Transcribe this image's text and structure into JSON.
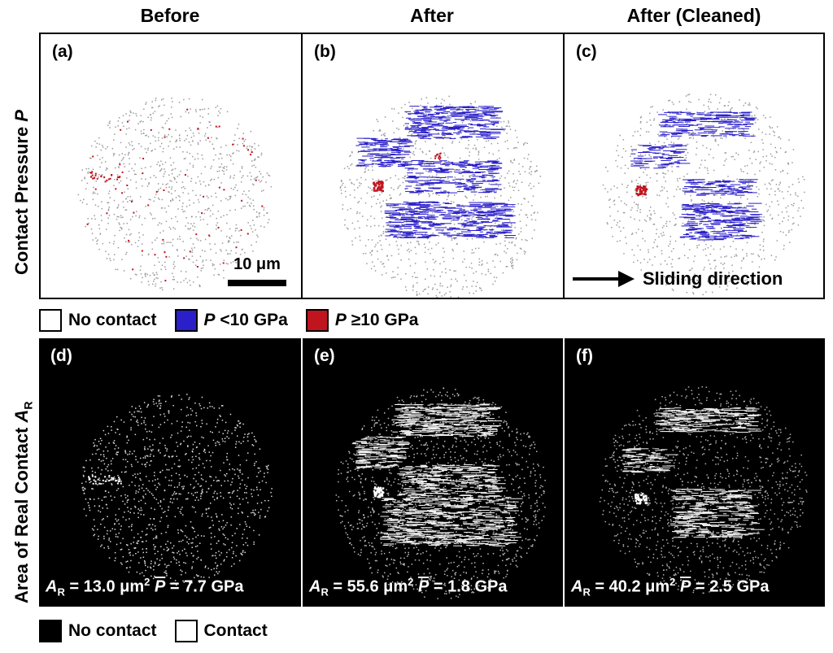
{
  "column_titles": [
    "Before",
    "After",
    "After (Cleaned)"
  ],
  "row_labels": {
    "top_prefix": "Contact Pressure ",
    "top_symbol": "P",
    "bottom_prefix": "Area of Real Contact ",
    "bottom_symbol": "A",
    "bottom_subscript": "R"
  },
  "panels_top": [
    {
      "label": "(a)"
    },
    {
      "label": "(b)"
    },
    {
      "label": "(c)"
    }
  ],
  "panels_bottom": [
    {
      "label": "(d)",
      "ar_value": "13.0",
      "p_value": "7.7"
    },
    {
      "label": "(e)",
      "ar_value": "55.6",
      "p_value": "1.8"
    },
    {
      "label": "(f)",
      "ar_value": "40.2",
      "p_value": "2.5"
    }
  ],
  "stat_text": {
    "ar_symbol": "A",
    "ar_sub": "R",
    "ar_unit": "μm",
    "ar_unit_sup": "2",
    "p_symbol": "P",
    "p_unit": "GPa"
  },
  "scale_bar": {
    "label": "10 μm"
  },
  "sliding": {
    "label": "Sliding direction"
  },
  "legend_top": {
    "no_contact": "No contact",
    "low_symbol": "P",
    "low_label": " <10 GPa",
    "high_symbol": "P",
    "high_label": " ≥10 GPa"
  },
  "legend_bottom": {
    "no_contact": "No contact",
    "contact": "Contact"
  },
  "colors": {
    "low_pressure": "#2a1fc9",
    "high_pressure": "#c0141e",
    "sparse_gray": "#9a9a9a"
  }
}
